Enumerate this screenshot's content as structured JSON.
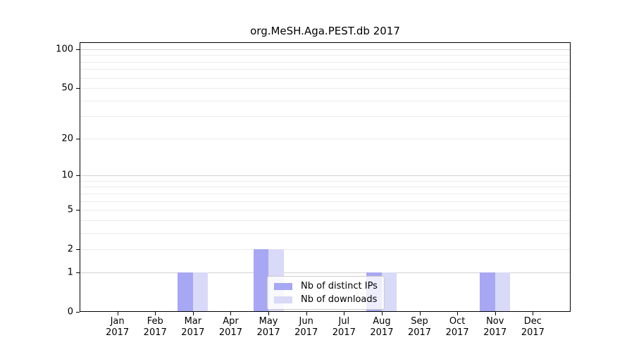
{
  "title": "org.MeSH.Aga.PEST.db 2017",
  "chart_data": {
    "type": "bar",
    "subtype": "grouped",
    "title": "org.MeSH.Aga.PEST.db 2017",
    "yscale": "log1p",
    "ylim": [
      0,
      113
    ],
    "yticks": [
      0,
      1,
      2,
      5,
      10,
      20,
      50,
      100
    ],
    "grid_major": [
      1,
      10,
      100
    ],
    "grid_minor": [
      2,
      3,
      4,
      5,
      6,
      7,
      8,
      9,
      20,
      30,
      40,
      50,
      60,
      70,
      80,
      90
    ],
    "grid": true,
    "legend_position": "lower-center",
    "categories": [
      {
        "month": "Jan",
        "year": "2017"
      },
      {
        "month": "Feb",
        "year": "2017"
      },
      {
        "month": "Mar",
        "year": "2017"
      },
      {
        "month": "Apr",
        "year": "2017"
      },
      {
        "month": "May",
        "year": "2017"
      },
      {
        "month": "Jun",
        "year": "2017"
      },
      {
        "month": "Jul",
        "year": "2017"
      },
      {
        "month": "Aug",
        "year": "2017"
      },
      {
        "month": "Sep",
        "year": "2017"
      },
      {
        "month": "Oct",
        "year": "2017"
      },
      {
        "month": "Nov",
        "year": "2017"
      },
      {
        "month": "Dec",
        "year": "2017"
      }
    ],
    "series": [
      {
        "name": "Nb of distinct IPs",
        "color": "#a7a7f3",
        "values": [
          0,
          0,
          1,
          0,
          2,
          0,
          0,
          1,
          0,
          0,
          1,
          0
        ]
      },
      {
        "name": "Nb of downloads",
        "color": "#d9d9f8",
        "values": [
          0,
          0,
          1,
          0,
          2,
          0,
          0,
          1,
          0,
          0,
          1,
          0
        ]
      }
    ],
    "colors": {
      "grid_major": "#d2d2d2",
      "grid_minor": "#ebebeb",
      "axis": "#000000",
      "text": "#000000"
    }
  }
}
